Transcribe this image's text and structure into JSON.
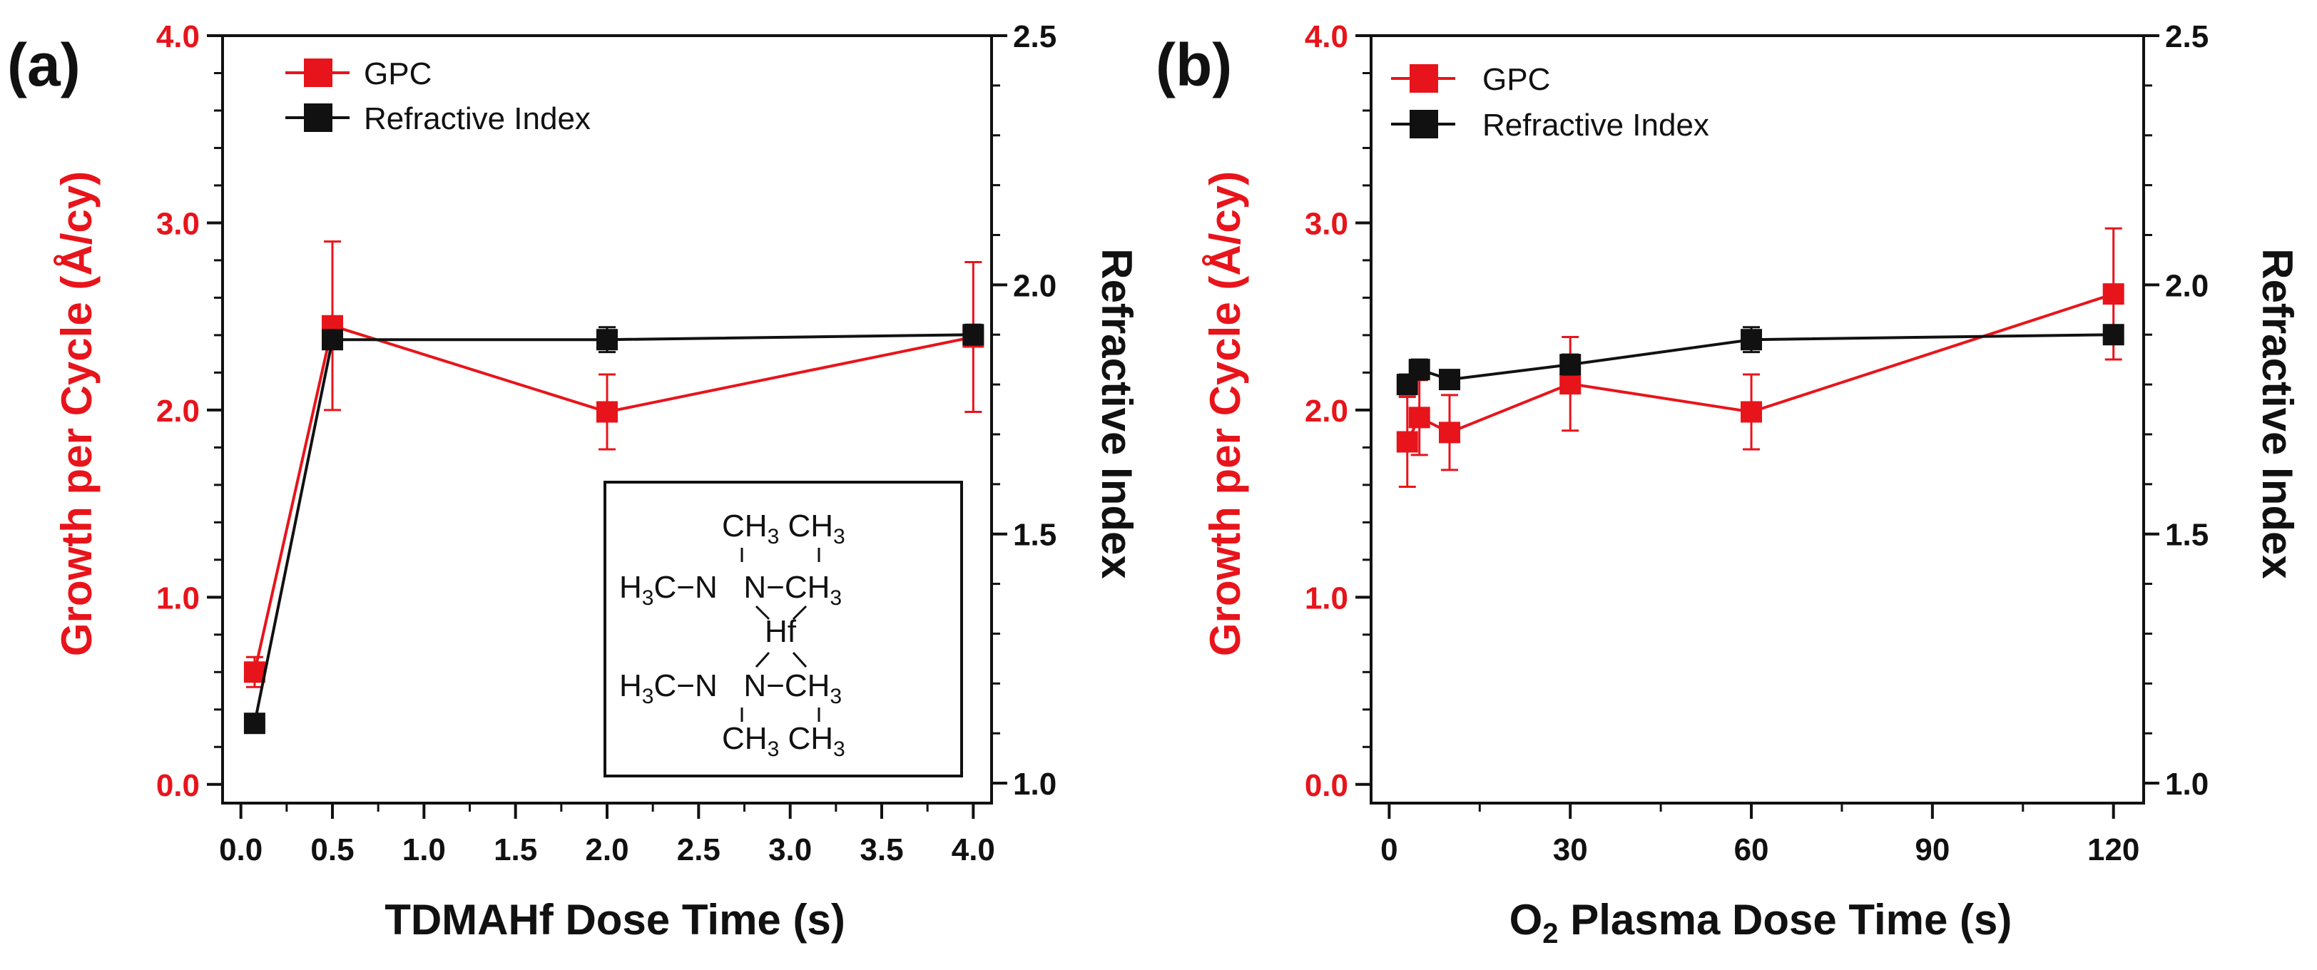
{
  "colors": {
    "gpc": "#e8141b",
    "ri": "#111111"
  },
  "chart_data": [
    {
      "type": "line",
      "panel_label": "(a)",
      "xlabel": "TDMAHf Dose Time (s)",
      "ylabel_left": "Growth per Cycle (Å/cy)",
      "ylabel_right": "Refractive Index",
      "xlim": [
        -0.1,
        4.1
      ],
      "ylim_left": [
        -0.1,
        4.0
      ],
      "ylim_right": [
        0.96,
        2.5
      ],
      "xticks": [
        0.0,
        0.5,
        1.0,
        1.5,
        2.0,
        2.5,
        3.0,
        3.5,
        4.0
      ],
      "xtick_labels": [
        "0.0",
        "0.5",
        "1.0",
        "1.5",
        "2.0",
        "2.5",
        "3.0",
        "3.5",
        "4.0"
      ],
      "yticks_left": [
        0,
        1,
        2,
        3,
        4
      ],
      "ytick_labels_left": [
        "0.0",
        "1.0",
        "2.0",
        "3.0",
        "4.0"
      ],
      "yticks_right": [
        1.0,
        1.5,
        2.0,
        2.5
      ],
      "ytick_labels_right": [
        "1.0",
        "1.5",
        "2.0",
        "2.5"
      ],
      "legend": [
        "GPC",
        "Refractive Index"
      ],
      "series": [
        {
          "name": "GPC",
          "axis": "left",
          "color": "#e8141b",
          "x": [
            0.075,
            0.5,
            2.0,
            4.0
          ],
          "y": [
            0.6,
            2.45,
            1.99,
            2.39
          ],
          "err": [
            0.08,
            0.45,
            0.2,
            0.4
          ]
        },
        {
          "name": "Refractive Index",
          "axis": "right",
          "color": "#111111",
          "x": [
            0.075,
            0.5,
            2.0,
            4.0
          ],
          "y": [
            1.12,
            1.89,
            1.89,
            1.9
          ],
          "err": [
            0.0,
            0.015,
            0.025,
            0.02
          ]
        }
      ],
      "inset": {
        "r1": [
          "CH",
          "3",
          " CH",
          "3"
        ],
        "r2": [
          "H",
          "3",
          "C−N",
          "",
          "   N−CH",
          "3"
        ],
        "r3": [
          "Hf"
        ],
        "r4": [
          "H",
          "3",
          "C−N",
          "",
          "   N−CH",
          "3"
        ],
        "r5": [
          "CH",
          "3",
          " CH",
          "3"
        ]
      }
    },
    {
      "type": "line",
      "panel_label": "(b)",
      "xlabel_prefix": "O",
      "xlabel_sub": "2",
      "xlabel_suffix": " Plasma Dose Time (s)",
      "ylabel_left": "Growth per Cycle (Å/cy)",
      "ylabel_right": "Refractive Index",
      "xlim": [
        -3,
        125
      ],
      "ylim_left": [
        -0.1,
        4.0
      ],
      "ylim_right": [
        0.96,
        2.5
      ],
      "xticks": [
        0,
        30,
        60,
        90,
        120
      ],
      "xtick_labels": [
        "0",
        "30",
        "60",
        "90",
        "120"
      ],
      "yticks_left": [
        0,
        1,
        2,
        3,
        4
      ],
      "ytick_labels_left": [
        "0.0",
        "1.0",
        "2.0",
        "3.0",
        "4.0"
      ],
      "yticks_right": [
        1.0,
        1.5,
        2.0,
        2.5
      ],
      "ytick_labels_right": [
        "1.0",
        "1.5",
        "2.0",
        "2.5"
      ],
      "legend": [
        "GPC",
        "Refractive Index"
      ],
      "series": [
        {
          "name": "GPC",
          "axis": "left",
          "color": "#e8141b",
          "x": [
            3,
            5,
            10,
            30,
            60,
            120
          ],
          "y": [
            1.83,
            1.96,
            1.88,
            2.14,
            1.99,
            2.62
          ],
          "err": [
            0.24,
            0.2,
            0.2,
            0.25,
            0.2,
            0.35
          ]
        },
        {
          "name": "Refractive Index",
          "axis": "right",
          "color": "#111111",
          "x": [
            3,
            5,
            10,
            30,
            60,
            120
          ],
          "y": [
            1.8,
            1.83,
            1.81,
            1.84,
            1.89,
            1.9
          ],
          "err": [
            0.02,
            0.02,
            0.01,
            0.02,
            0.025,
            0.015
          ]
        }
      ]
    }
  ]
}
